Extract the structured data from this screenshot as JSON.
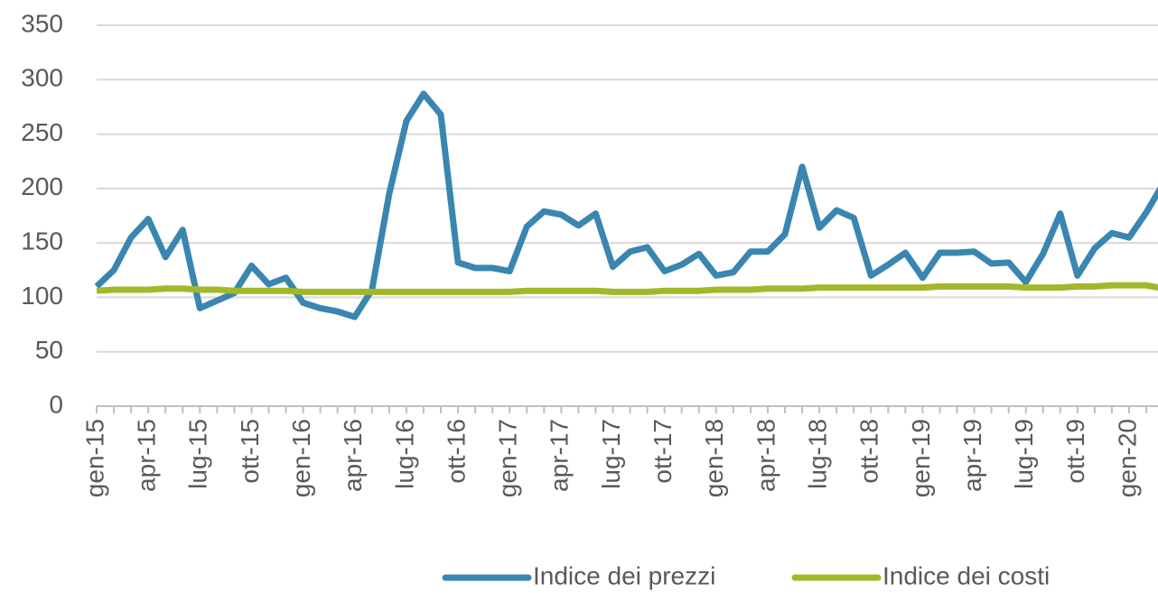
{
  "chart_data": {
    "type": "line",
    "categories": [
      "gen-15",
      null,
      null,
      "apr-15",
      null,
      null,
      "lug-15",
      null,
      null,
      "ott-15",
      null,
      null,
      "gen-16",
      null,
      null,
      "apr-16",
      null,
      null,
      "lug-16",
      null,
      null,
      "ott-16",
      null,
      null,
      "gen-17",
      null,
      null,
      "apr-17",
      null,
      null,
      "lug-17",
      null,
      null,
      "ott-17",
      null,
      null,
      "gen-18",
      null,
      null,
      "apr-18",
      null,
      null,
      "lug-18",
      null,
      null,
      "ott-18",
      null,
      null,
      "gen-19",
      null,
      null,
      "apr-19",
      null,
      null,
      "lug-19",
      null,
      null,
      "ott-19",
      null,
      null,
      "gen-20",
      null,
      null
    ],
    "series": [
      {
        "name": "Indice dei prezzi",
        "color": "#3a86b0",
        "values": [
          110,
          125,
          155,
          172,
          137,
          162,
          90,
          97,
          104,
          129,
          112,
          118,
          95,
          90,
          87,
          82,
          107,
          195,
          262,
          287,
          268,
          132,
          127,
          127,
          124,
          165,
          179,
          176,
          166,
          177,
          128,
          142,
          146,
          124,
          130,
          140,
          120,
          123,
          142,
          142,
          158,
          220,
          164,
          180,
          173,
          120,
          130,
          141,
          118,
          141,
          141,
          142,
          131,
          132,
          114,
          140,
          177,
          120,
          145,
          159,
          155,
          178,
          205
        ]
      },
      {
        "name": "Indice dei costi",
        "color": "#a2b82a",
        "values": [
          106,
          107,
          107,
          107,
          108,
          108,
          107,
          107,
          106,
          106,
          106,
          106,
          105,
          105,
          105,
          105,
          105,
          105,
          105,
          105,
          105,
          105,
          105,
          105,
          105,
          106,
          106,
          106,
          106,
          106,
          105,
          105,
          105,
          106,
          106,
          106,
          107,
          107,
          107,
          108,
          108,
          108,
          109,
          109,
          109,
          109,
          109,
          109,
          109,
          110,
          110,
          110,
          110,
          110,
          109,
          109,
          109,
          110,
          110,
          111,
          111,
          111,
          108
        ]
      }
    ],
    "ylim": [
      0,
      350
    ],
    "yticks": [
      0,
      50,
      100,
      150,
      200,
      250,
      300,
      350
    ],
    "grid": true,
    "legend": "bottom"
  }
}
